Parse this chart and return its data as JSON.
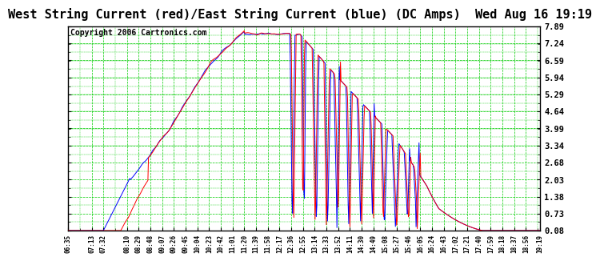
{
  "title": "West String Current (red)/East String Current (blue) (DC Amps)  Wed Aug 16 19:19",
  "copyright": "Copyright 2006 Cartronics.com",
  "y_ticks": [
    0.08,
    0.73,
    1.38,
    2.03,
    2.68,
    3.34,
    3.99,
    4.64,
    5.29,
    5.94,
    6.59,
    7.24,
    7.89
  ],
  "ylim": [
    0.08,
    7.89
  ],
  "bg_color": "#ffffff",
  "plot_bg_color": "#ffffff",
  "grid_color": "#00cc00",
  "line_color_red": "#ff0000",
  "line_color_blue": "#0000ff",
  "title_fontsize": 11,
  "copyright_fontsize": 7,
  "x_labels": [
    "06:35",
    "07:13",
    "07:32",
    "08:10",
    "08:29",
    "08:48",
    "09:07",
    "09:26",
    "09:45",
    "10:04",
    "10:23",
    "10:42",
    "11:01",
    "11:20",
    "11:39",
    "11:58",
    "12:17",
    "12:36",
    "12:55",
    "13:14",
    "13:33",
    "13:52",
    "14:11",
    "14:30",
    "14:49",
    "15:08",
    "15:27",
    "15:46",
    "16:05",
    "16:24",
    "16:43",
    "17:02",
    "17:21",
    "17:40",
    "17:59",
    "18:18",
    "18:37",
    "18:56",
    "19:19"
  ]
}
